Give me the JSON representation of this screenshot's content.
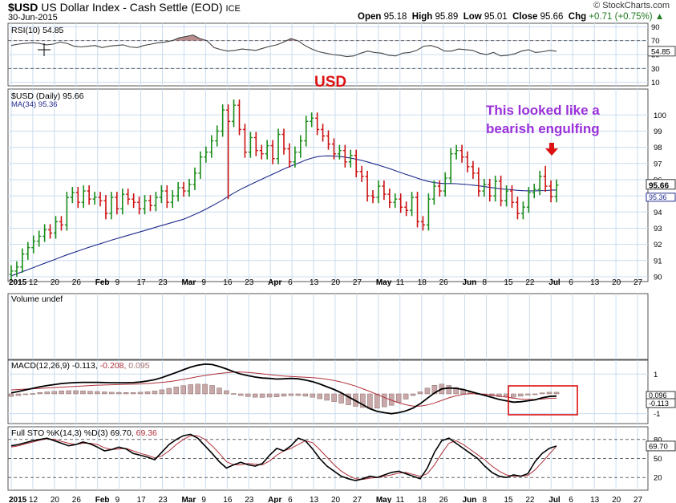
{
  "header": {
    "symbol": "$USD",
    "name": "US Dollar Index - Cash Settle (EOD)",
    "exchange": "ICE",
    "date": "30-Jun-2015",
    "open_label": "Open",
    "open": "95.18",
    "high_label": "High",
    "high": "95.89",
    "low_label": "Low",
    "low": "95.01",
    "close_label": "Close",
    "close": "95.66",
    "chg_label": "Chg",
    "chg": "+0.71 (+0.75%)",
    "chg_arrow": "▲",
    "brand": "© StockCharts.com"
  },
  "colors": {
    "up_bar": "#1a8c1a",
    "down_bar": "#cc1111",
    "ma_line": "#1f2a8c",
    "grid": "#c9dcef",
    "annotation_red": "#dd1111",
    "annotation_purple": "#9b30d9",
    "pane_border": "#555555"
  },
  "chart_data": [
    {
      "type": "line",
      "panel": "RSI",
      "legend": "RSI(10) 54.85",
      "y_ticks": [
        10,
        30,
        50,
        70,
        90
      ],
      "ylim": [
        5,
        95
      ],
      "reference_lines": [
        30,
        70
      ],
      "last_value_label": "54.85",
      "values": [
        63,
        65,
        66,
        67,
        66,
        64,
        65,
        68,
        66,
        62,
        61,
        62,
        63,
        60,
        62,
        63,
        64,
        61,
        60,
        63,
        65,
        67,
        68,
        70,
        74,
        76,
        78,
        73,
        70,
        60,
        57,
        55,
        56,
        58,
        57,
        56,
        59,
        62,
        64,
        68,
        73,
        70,
        63,
        58,
        54,
        52,
        50,
        49,
        47,
        48,
        52,
        55,
        53,
        52,
        49,
        48,
        52,
        53,
        56,
        62,
        63,
        60,
        55,
        55,
        58,
        57,
        56,
        52,
        50,
        53,
        48,
        49,
        51,
        55,
        57,
        53,
        54,
        56,
        54.85
      ],
      "fill_above_70": true,
      "fill_below_30": true
    },
    {
      "type": "bar",
      "subtype": "ohlc",
      "panel": "price",
      "legend": "$USD (Daily) 95.66",
      "legend2": "MA(34) 95.36",
      "title": "USD",
      "y_ticks": [
        90,
        91,
        92,
        93,
        94,
        95,
        96,
        97,
        98,
        99,
        100
      ],
      "ylim": [
        89.7,
        101.6
      ],
      "last_price_label": "95.66",
      "ma_label": "95.36",
      "annotation": [
        "This looked like a",
        "bearish engulfing"
      ],
      "x_labels": [
        "2015",
        "12",
        "20",
        "26",
        "Feb",
        "9",
        "17",
        "23",
        "Mar",
        "9",
        "16",
        "23",
        "Apr",
        "6",
        "13",
        "20",
        "27",
        "May",
        "11",
        "18",
        "26",
        "Jun",
        "8",
        "15",
        "22",
        "Jul",
        "6",
        "13",
        "20",
        "27"
      ],
      "bold_x_labels": [
        "2015",
        "Feb",
        "Mar",
        "Apr",
        "May",
        "Jun",
        "Jul"
      ],
      "closes": [
        90.35,
        90.6,
        91.4,
        91.8,
        92.2,
        92.5,
        92.9,
        92.7,
        93.4,
        93.2,
        94.9,
        95.2,
        94.6,
        95.3,
        94.8,
        94.9,
        94.7,
        93.9,
        94.9,
        94.2,
        95.1,
        94.8,
        94.6,
        94.2,
        94.7,
        94.4,
        94.9,
        95.3,
        94.6,
        95.0,
        95.5,
        95.3,
        95.7,
        96.4,
        97.4,
        97.7,
        98.4,
        99.0,
        100.3,
        99.6,
        100.6,
        99.1,
        97.7,
        98.6,
        97.8,
        97.6,
        98.1,
        97.3,
        98.8,
        97.9,
        97.1,
        97.7,
        98.4,
        99.6,
        99.8,
        99.1,
        98.7,
        98.2,
        97.6,
        97.8,
        97.1,
        97.5,
        96.5,
        96.2,
        95.0,
        94.9,
        95.6,
        95.1,
        94.6,
        94.8,
        94.3,
        94.1,
        94.9,
        93.4,
        93.2,
        94.8,
        95.6,
        95.3,
        96.1,
        97.6,
        97.8,
        97.4,
        96.8,
        96.4,
        95.3,
        95.7,
        95.0,
        95.9,
        94.7,
        95.3,
        94.6,
        93.9,
        94.3,
        95.2,
        95.4,
        96.2,
        95.6,
        94.95,
        95.66
      ],
      "ma34": [
        90.05,
        90.18,
        90.31,
        90.44,
        90.57,
        90.7,
        90.83,
        90.96,
        91.09,
        91.22,
        91.35,
        91.47,
        91.59,
        91.71,
        91.82,
        91.93,
        92.04,
        92.15,
        92.26,
        92.36,
        92.46,
        92.56,
        92.66,
        92.76,
        92.86,
        92.96,
        93.06,
        93.16,
        93.26,
        93.36,
        93.46,
        93.56,
        93.7,
        93.85,
        94.01,
        94.18,
        94.36,
        94.55,
        94.75,
        94.96,
        95.17,
        95.36,
        95.53,
        95.7,
        95.86,
        96.02,
        96.18,
        96.34,
        96.5,
        96.66,
        96.8,
        96.94,
        97.08,
        97.22,
        97.33,
        97.42,
        97.46,
        97.47,
        97.46,
        97.44,
        97.39,
        97.33,
        97.26,
        97.19,
        97.1,
        97.0,
        96.9,
        96.79,
        96.68,
        96.56,
        96.44,
        96.32,
        96.21,
        96.09,
        95.98,
        95.89,
        95.82,
        95.78,
        95.76,
        95.76,
        95.75,
        95.72,
        95.7,
        95.66,
        95.62,
        95.57,
        95.52,
        95.48,
        95.43,
        95.4,
        95.37,
        95.34,
        95.32,
        95.31,
        95.31,
        95.32,
        95.33,
        95.35,
        95.36
      ]
    },
    {
      "type": "bar",
      "panel": "volume",
      "legend": "Volume undef",
      "values": []
    },
    {
      "type": "line",
      "panel": "MACD",
      "legend_prefix": "MACD(12,26,9)",
      "legend_macd": "-0.113,",
      "legend_signal": "-0.208,",
      "legend_hist": "0.095",
      "y_ticks": [
        1,
        -1
      ],
      "ylim": [
        -1.5,
        1.7
      ],
      "last_labels": [
        "0.096",
        "-0.113"
      ],
      "series": [
        {
          "name": "MACD",
          "values": [
            0.05,
            0.12,
            0.2,
            0.28,
            0.36,
            0.42,
            0.47,
            0.52,
            0.55,
            0.57,
            0.58,
            0.58,
            0.58,
            0.57,
            0.56,
            0.56,
            0.56,
            0.57,
            0.6,
            0.65,
            0.72,
            0.82,
            0.95,
            1.08,
            1.22,
            1.35,
            1.45,
            1.5,
            1.48,
            1.38,
            1.26,
            1.12,
            1.0,
            0.92,
            0.85,
            0.8,
            0.78,
            0.75,
            0.76,
            0.78,
            0.76,
            0.7,
            0.62,
            0.5,
            0.36,
            0.22,
            0.05,
            -0.15,
            -0.35,
            -0.55,
            -0.75,
            -0.88,
            -0.95,
            -1.0,
            -0.95,
            -0.86,
            -0.72,
            -0.5,
            -0.22,
            0.05,
            0.25,
            0.3,
            0.28,
            0.22,
            0.12,
            0.02,
            -0.08,
            -0.18,
            -0.28,
            -0.35,
            -0.42,
            -0.4,
            -0.35,
            -0.3,
            -0.2,
            -0.13,
            -0.11
          ]
        },
        {
          "name": "signal",
          "values": [
            0.2,
            0.22,
            0.24,
            0.26,
            0.28,
            0.3,
            0.32,
            0.34,
            0.36,
            0.38,
            0.4,
            0.42,
            0.44,
            0.45,
            0.46,
            0.47,
            0.48,
            0.49,
            0.5,
            0.52,
            0.55,
            0.58,
            0.62,
            0.67,
            0.73,
            0.8,
            0.87,
            0.93,
            0.98,
            1.03,
            1.07,
            1.1,
            1.1,
            1.08,
            1.05,
            1.01,
            0.97,
            0.93,
            0.9,
            0.88,
            0.86,
            0.84,
            0.82,
            0.79,
            0.74,
            0.68,
            0.6,
            0.5,
            0.39,
            0.26,
            0.12,
            -0.03,
            -0.18,
            -0.32,
            -0.45,
            -0.55,
            -0.62,
            -0.62,
            -0.56,
            -0.46,
            -0.33,
            -0.2,
            -0.1,
            -0.02,
            0.01,
            0.01,
            -0.02,
            -0.06,
            -0.11,
            -0.16,
            -0.22,
            -0.26,
            -0.28,
            -0.28,
            -0.26,
            -0.23,
            -0.21
          ]
        }
      ],
      "histogram": true,
      "highlight_box": true
    },
    {
      "type": "line",
      "panel": "STO",
      "legend_prefix": "Full STO %K(14,3) %D(3)",
      "legend_k": "69.70,",
      "legend_d": "69.36",
      "y_ticks": [
        20,
        50,
        80
      ],
      "ylim": [
        0,
        100
      ],
      "reference_lines": [
        20,
        50,
        80
      ],
      "last_label": "69.70",
      "series": [
        {
          "name": "%K",
          "values": [
            70,
            72,
            75,
            78,
            80,
            82,
            78,
            74,
            70,
            72,
            76,
            73,
            68,
            62,
            64,
            68,
            65,
            58,
            55,
            52,
            48,
            60,
            72,
            80,
            86,
            88,
            82,
            70,
            58,
            45,
            35,
            40,
            44,
            40,
            38,
            42,
            55,
            66,
            62,
            70,
            82,
            78,
            65,
            50,
            38,
            30,
            22,
            18,
            15,
            18,
            22,
            20,
            24,
            28,
            30,
            26,
            22,
            18,
            35,
            60,
            78,
            82,
            74,
            66,
            58,
            50,
            38,
            28,
            22,
            20,
            24,
            22,
            26,
            45,
            58,
            66,
            69.7
          ]
        },
        {
          "name": "%D",
          "values": [
            68,
            70,
            73,
            76,
            79,
            81,
            80,
            77,
            74,
            72,
            74,
            74,
            72,
            67,
            64,
            65,
            66,
            62,
            58,
            55,
            51,
            54,
            62,
            72,
            80,
            86,
            86,
            80,
            70,
            58,
            45,
            40,
            40,
            42,
            41,
            40,
            46,
            55,
            62,
            66,
            72,
            78,
            75,
            64,
            52,
            40,
            30,
            23,
            18,
            17,
            19,
            20,
            22,
            24,
            27,
            28,
            25,
            22,
            26,
            40,
            58,
            74,
            78,
            72,
            64,
            56,
            48,
            38,
            30,
            24,
            22,
            22,
            23,
            32,
            44,
            57,
            69.36
          ]
        }
      ]
    }
  ]
}
